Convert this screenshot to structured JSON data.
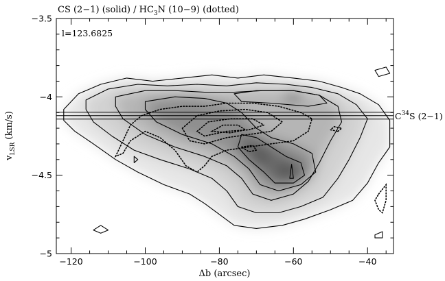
{
  "chart_data": {
    "type": "contour",
    "title_parts": [
      "CS (2−1) (solid) / HC",
      "3",
      "N (10−9) (dotted)"
    ],
    "annotation": "l=123.6825",
    "marker_label_parts": [
      "C",
      "34",
      "S (2−1)"
    ],
    "marker_velocity": -4.12,
    "xlabel": "Δb (arcsec)",
    "ylabel_parts": [
      "v",
      "LSR",
      " (km/s)"
    ],
    "xlim": [
      -124,
      -33
    ],
    "ylim": [
      -5,
      -3.5
    ],
    "x_ticks": [
      -120,
      -100,
      -80,
      -60,
      -40
    ],
    "x_tick_labels": [
      "−120",
      "−100",
      "−80",
      "−60",
      "−40"
    ],
    "y_ticks": [
      -5,
      -4.5,
      -4,
      -3.5
    ],
    "y_tick_labels": [
      "−5",
      "−4.5",
      "−4",
      "−3.5"
    ],
    "emission_peaks": [
      {
        "x": -69,
        "v": -4.38,
        "level": "high"
      },
      {
        "x": -62,
        "v": -4.47,
        "level": "high"
      },
      {
        "x": -88,
        "v": -4.06,
        "level": "medium"
      },
      {
        "x": -60,
        "v": -4.0,
        "level": "medium"
      }
    ],
    "contours_solid": [
      [
        [
          -122,
          -4.08
        ],
        [
          -118,
          -3.98
        ],
        [
          -112,
          -3.92
        ],
        [
          -105,
          -3.88
        ],
        [
          -98,
          -3.9
        ],
        [
          -90,
          -3.88
        ],
        [
          -82,
          -3.86
        ],
        [
          -75,
          -3.88
        ],
        [
          -68,
          -3.86
        ],
        [
          -60,
          -3.88
        ],
        [
          -53,
          -3.9
        ],
        [
          -47,
          -3.94
        ],
        [
          -42,
          -3.98
        ],
        [
          -37,
          -4.05
        ],
        [
          -34,
          -4.15
        ],
        [
          -34,
          -4.32
        ],
        [
          -37,
          -4.42
        ],
        [
          -40,
          -4.55
        ],
        [
          -44,
          -4.66
        ],
        [
          -50,
          -4.72
        ],
        [
          -57,
          -4.78
        ],
        [
          -63,
          -4.82
        ],
        [
          -70,
          -4.84
        ],
        [
          -76,
          -4.82
        ],
        [
          -80,
          -4.75
        ],
        [
          -84,
          -4.68
        ],
        [
          -88,
          -4.62
        ],
        [
          -95,
          -4.56
        ],
        [
          -102,
          -4.48
        ],
        [
          -108,
          -4.4
        ],
        [
          -114,
          -4.3
        ],
        [
          -119,
          -4.22
        ],
        [
          -122,
          -4.15
        ],
        [
          -122,
          -4.08
        ]
      ],
      [
        [
          -116,
          -4.02
        ],
        [
          -110,
          -3.95
        ],
        [
          -102,
          -3.92
        ],
        [
          -94,
          -3.93
        ],
        [
          -86,
          -3.92
        ],
        [
          -78,
          -3.93
        ],
        [
          -70,
          -3.91
        ],
        [
          -62,
          -3.92
        ],
        [
          -55,
          -3.94
        ],
        [
          -48,
          -3.98
        ],
        [
          -43,
          -4.05
        ],
        [
          -40,
          -4.14
        ],
        [
          -42,
          -4.26
        ],
        [
          -45,
          -4.4
        ],
        [
          -48,
          -4.52
        ],
        [
          -52,
          -4.64
        ],
        [
          -58,
          -4.7
        ],
        [
          -64,
          -4.74
        ],
        [
          -70,
          -4.74
        ],
        [
          -75,
          -4.7
        ],
        [
          -78,
          -4.6
        ],
        [
          -82,
          -4.52
        ],
        [
          -88,
          -4.46
        ],
        [
          -96,
          -4.4
        ],
        [
          -103,
          -4.34
        ],
        [
          -109,
          -4.25
        ],
        [
          -114,
          -4.16
        ],
        [
          -116,
          -4.08
        ],
        [
          -116,
          -4.02
        ]
      ],
      [
        [
          -108,
          -4.0
        ],
        [
          -100,
          -3.96
        ],
        [
          -92,
          -3.96
        ],
        [
          -84,
          -3.97
        ],
        [
          -76,
          -3.97
        ],
        [
          -68,
          -3.96
        ],
        [
          -60,
          -3.96
        ],
        [
          -53,
          -3.99
        ],
        [
          -48,
          -4.06
        ],
        [
          -47,
          -4.16
        ],
        [
          -50,
          -4.28
        ],
        [
          -53,
          -4.42
        ],
        [
          -56,
          -4.54
        ],
        [
          -60,
          -4.62
        ],
        [
          -66,
          -4.66
        ],
        [
          -71,
          -4.62
        ],
        [
          -74,
          -4.52
        ],
        [
          -78,
          -4.44
        ],
        [
          -84,
          -4.38
        ],
        [
          -92,
          -4.32
        ],
        [
          -100,
          -4.24
        ],
        [
          -106,
          -4.14
        ],
        [
          -108,
          -4.06
        ],
        [
          -108,
          -4.0
        ]
      ],
      [
        [
          -100,
          -4.03
        ],
        [
          -92,
          -4.0
        ],
        [
          -84,
          -4.01
        ],
        [
          -78,
          -4.04
        ],
        [
          -74,
          -4.1
        ],
        [
          -70,
          -4.2
        ],
        [
          -66,
          -4.26
        ],
        [
          -60,
          -4.3
        ],
        [
          -55,
          -4.36
        ],
        [
          -54,
          -4.48
        ],
        [
          -58,
          -4.56
        ],
        [
          -64,
          -4.6
        ],
        [
          -69,
          -4.56
        ],
        [
          -72,
          -4.46
        ],
        [
          -76,
          -4.38
        ],
        [
          -82,
          -4.3
        ],
        [
          -90,
          -4.24
        ],
        [
          -97,
          -4.16
        ],
        [
          -100,
          -4.08
        ],
        [
          -100,
          -4.03
        ]
      ],
      [
        [
          -74,
          -4.24
        ],
        [
          -70,
          -4.26
        ],
        [
          -66,
          -4.32
        ],
        [
          -62,
          -4.38
        ],
        [
          -58,
          -4.42
        ],
        [
          -57,
          -4.5
        ],
        [
          -60,
          -4.55
        ],
        [
          -65,
          -4.55
        ],
        [
          -68,
          -4.48
        ],
        [
          -72,
          -4.4
        ],
        [
          -75,
          -4.32
        ],
        [
          -74,
          -4.24
        ]
      ],
      [
        [
          -76,
          -3.98
        ],
        [
          -70,
          -3.96
        ],
        [
          -60,
          -3.96
        ],
        [
          -53,
          -3.99
        ],
        [
          -51,
          -4.04
        ],
        [
          -56,
          -4.06
        ],
        [
          -66,
          -4.04
        ],
        [
          -74,
          -4.03
        ],
        [
          -76,
          -3.98
        ]
      ],
      [
        [
          -112,
          -4.82
        ],
        [
          -110,
          -4.85
        ],
        [
          -112,
          -4.87
        ],
        [
          -114,
          -4.85
        ],
        [
          -112,
          -4.82
        ]
      ],
      [
        [
          -38,
          -3.83
        ],
        [
          -35,
          -3.81
        ],
        [
          -34,
          -3.85
        ],
        [
          -37,
          -3.87
        ],
        [
          -38,
          -3.83
        ]
      ],
      [
        [
          -38,
          -4.88
        ],
        [
          -36,
          -4.86
        ],
        [
          -36,
          -4.9
        ],
        [
          -38,
          -4.9
        ],
        [
          -38,
          -4.88
        ]
      ],
      [
        [
          -60.5,
          -4.43
        ],
        [
          -60,
          -4.52
        ],
        [
          -61,
          -4.52
        ],
        [
          -60.5,
          -4.43
        ]
      ],
      [
        [
          -103,
          -4.38
        ],
        [
          -102,
          -4.4
        ],
        [
          -103,
          -4.42
        ],
        [
          -103,
          -4.38
        ]
      ]
    ],
    "contours_dotted": [
      [
        [
          -108,
          -4.38
        ],
        [
          -106,
          -4.28
        ],
        [
          -104,
          -4.18
        ],
        [
          -101,
          -4.12
        ],
        [
          -96,
          -4.08
        ],
        [
          -90,
          -4.06
        ],
        [
          -84,
          -4.06
        ],
        [
          -78,
          -4.04
        ],
        [
          -71,
          -4.04
        ],
        [
          -64,
          -4.06
        ],
        [
          -58,
          -4.1
        ],
        [
          -55,
          -4.14
        ],
        [
          -56,
          -4.22
        ],
        [
          -60,
          -4.28
        ],
        [
          -66,
          -4.3
        ],
        [
          -72,
          -4.32
        ],
        [
          -78,
          -4.34
        ],
        [
          -82,
          -4.38
        ],
        [
          -84,
          -4.44
        ],
        [
          -86,
          -4.48
        ],
        [
          -89,
          -4.44
        ],
        [
          -92,
          -4.34
        ],
        [
          -96,
          -4.26
        ],
        [
          -100,
          -4.22
        ],
        [
          -104,
          -4.28
        ],
        [
          -106,
          -4.36
        ],
        [
          -108,
          -4.38
        ]
      ],
      [
        [
          -90,
          -4.2
        ],
        [
          -86,
          -4.12
        ],
        [
          -80,
          -4.09
        ],
        [
          -73,
          -4.08
        ],
        [
          -67,
          -4.1
        ],
        [
          -63,
          -4.16
        ],
        [
          -66,
          -4.22
        ],
        [
          -72,
          -4.24
        ],
        [
          -78,
          -4.26
        ],
        [
          -84,
          -4.3
        ],
        [
          -88,
          -4.28
        ],
        [
          -90,
          -4.2
        ]
      ],
      [
        [
          -86,
          -4.22
        ],
        [
          -83,
          -4.16
        ],
        [
          -77,
          -4.14
        ],
        [
          -71,
          -4.14
        ],
        [
          -68,
          -4.18
        ],
        [
          -72,
          -4.21
        ],
        [
          -78,
          -4.22
        ],
        [
          -84,
          -4.25
        ],
        [
          -86,
          -4.22
        ]
      ],
      [
        [
          -82,
          -4.22
        ],
        [
          -79,
          -4.18
        ],
        [
          -75,
          -4.18
        ],
        [
          -73,
          -4.21
        ],
        [
          -77,
          -4.23
        ],
        [
          -82,
          -4.22
        ]
      ],
      [
        [
          -48,
          -4.22
        ],
        [
          -47,
          -4.2
        ],
        [
          -49,
          -4.19
        ],
        [
          -50,
          -4.21
        ],
        [
          -48,
          -4.22
        ]
      ],
      [
        [
          -37,
          -4.62
        ],
        [
          -35,
          -4.56
        ],
        [
          -35,
          -4.66
        ],
        [
          -36,
          -4.74
        ],
        [
          -37,
          -4.72
        ],
        [
          -38,
          -4.66
        ],
        [
          -37,
          -4.62
        ]
      ],
      [
        [
          -74,
          -4.32
        ],
        [
          -71,
          -4.31
        ],
        [
          -70,
          -4.34
        ],
        [
          -72,
          -4.35
        ],
        [
          -74,
          -4.32
        ]
      ]
    ],
    "grid": false
  }
}
